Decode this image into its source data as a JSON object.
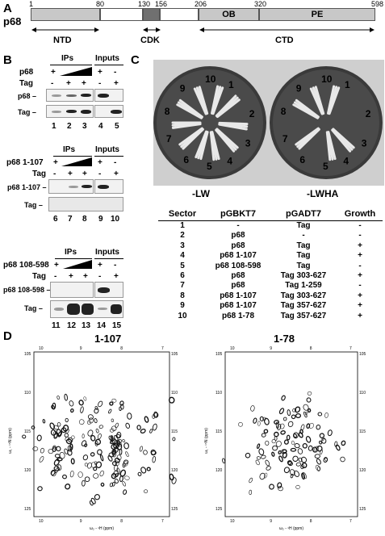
{
  "panelA": {
    "label": "A",
    "protein": "p68",
    "positions": [
      "1",
      "80",
      "130",
      "156",
      "206",
      "320",
      "598"
    ],
    "domains": {
      "ob": "OB",
      "pe": "PE"
    },
    "regions": {
      "ntd": "NTD",
      "cdk": "CDK",
      "ctd": "CTD"
    }
  },
  "panelB": {
    "label": "B",
    "header_ips": "IPs",
    "header_inputs": "Inputs",
    "blots": [
      {
        "row1_label": "p68",
        "row1_signs": [
          "+",
          "",
          "",
          "+",
          "-"
        ],
        "row2_label": "Tag",
        "row2_signs": [
          "-",
          "+",
          "+",
          "-",
          "+"
        ],
        "band_labels": [
          "p68",
          "Tag"
        ],
        "lanes": [
          "1",
          "2",
          "3",
          "4",
          "5"
        ]
      },
      {
        "row1_label": "p68 1-107",
        "row1_signs": [
          "+",
          "",
          "",
          "+",
          "-"
        ],
        "row2_label": "Tag",
        "row2_signs": [
          "-",
          "+",
          "+",
          "-",
          "+"
        ],
        "band_labels": [
          "p68 1-107",
          "Tag"
        ],
        "lanes": [
          "6",
          "7",
          "8",
          "9",
          "10"
        ]
      },
      {
        "row1_label": "p68 108-598",
        "row1_signs": [
          "+",
          "",
          "",
          "+",
          "-"
        ],
        "row2_label": "Tag",
        "row2_signs": [
          "-",
          "+",
          "+",
          "-",
          "+"
        ],
        "band_labels": [
          "p68 108-598",
          "Tag"
        ],
        "lanes": [
          "11",
          "12",
          "13",
          "14",
          "15"
        ]
      }
    ]
  },
  "panelC": {
    "label": "C",
    "plate_numbers": [
      "1",
      "2",
      "3",
      "4",
      "5",
      "6",
      "7",
      "8",
      "9",
      "10"
    ],
    "plates": [
      {
        "label": "-LW"
      },
      {
        "label": "-LWHA"
      }
    ],
    "table": {
      "headers": [
        "Sector",
        "pGBKT7",
        "pGADT7",
        "Growth"
      ],
      "rows": [
        [
          "1",
          "-",
          "Tag",
          "-"
        ],
        [
          "2",
          "p68",
          "-",
          "-"
        ],
        [
          "3",
          "p68",
          "Tag",
          "+"
        ],
        [
          "4",
          "p68 1-107",
          "Tag",
          "+"
        ],
        [
          "5",
          "p68 108-598",
          "Tag",
          "-"
        ],
        [
          "6",
          "p68",
          "Tag 303-627",
          "+"
        ],
        [
          "7",
          "p68",
          "Tag 1-259",
          "-"
        ],
        [
          "8",
          "p68 1-107",
          "Tag 303-627",
          "+"
        ],
        [
          "9",
          "p68 1-107",
          "Tag 357-627",
          "+"
        ],
        [
          "10",
          "p68 1-78",
          "Tag 357-627",
          "+"
        ]
      ]
    }
  },
  "panelD": {
    "label": "D",
    "spectra": [
      {
        "title": "1-107",
        "xticks": [
          "10",
          "9",
          "8",
          "7"
        ],
        "yticks": [
          "105",
          "110",
          "115",
          "120",
          "125"
        ]
      },
      {
        "title": "1-78",
        "xticks": [
          "10",
          "9",
          "8",
          "7"
        ],
        "yticks": [
          "105",
          "110",
          "115",
          "120",
          "125"
        ]
      }
    ],
    "xaxis_label": "ω₂ - ¹H (ppm)",
    "yaxis_label": "ω₁ - ¹⁵N (ppm)"
  }
}
